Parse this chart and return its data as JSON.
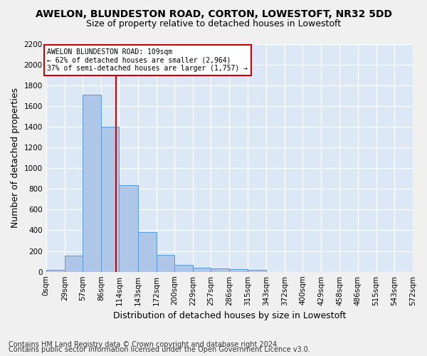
{
  "title1": "AWELON, BLUNDESTON ROAD, CORTON, LOWESTOFT, NR32 5DD",
  "title2": "Size of property relative to detached houses in Lowestoft",
  "xlabel": "Distribution of detached houses by size in Lowestoft",
  "ylabel": "Number of detached properties",
  "footnote1": "Contains HM Land Registry data © Crown copyright and database right 2024.",
  "footnote2": "Contains public sector information licensed under the Open Government Licence v3.0.",
  "bar_values": [
    20,
    155,
    1710,
    1400,
    835,
    385,
    165,
    65,
    38,
    30,
    28,
    15,
    0,
    0,
    0,
    0,
    0,
    0,
    0,
    0
  ],
  "bin_edges": [
    0,
    29,
    57,
    86,
    114,
    143,
    172,
    200,
    229,
    257,
    286,
    315,
    343,
    372,
    400,
    429,
    458,
    486,
    515,
    543,
    572
  ],
  "tick_labels": [
    "0sqm",
    "29sqm",
    "57sqm",
    "86sqm",
    "114sqm",
    "143sqm",
    "172sqm",
    "200sqm",
    "229sqm",
    "257sqm",
    "286sqm",
    "315sqm",
    "343sqm",
    "372sqm",
    "400sqm",
    "429sqm",
    "458sqm",
    "486sqm",
    "515sqm",
    "543sqm",
    "572sqm"
  ],
  "bar_color": "#aec6e8",
  "bar_edge_color": "#5b9bd5",
  "ylim": [
    0,
    2200
  ],
  "yticks": [
    0,
    200,
    400,
    600,
    800,
    1000,
    1200,
    1400,
    1600,
    1800,
    2000,
    2200
  ],
  "property_line_x": 109,
  "red_line_color": "#cc0000",
  "annotation_title": "AWELON BLUNDESTON ROAD: 109sqm",
  "annotation_line1": "← 62% of detached houses are smaller (2,964)",
  "annotation_line2": "37% of semi-detached houses are larger (1,757) →",
  "annotation_box_color": "#ffffff",
  "annotation_box_edge": "#cc0000",
  "bg_color": "#dce8f5",
  "grid_color": "#ffffff",
  "title1_fontsize": 10,
  "title2_fontsize": 9,
  "xlabel_fontsize": 9,
  "ylabel_fontsize": 9,
  "tick_fontsize": 7.5,
  "footnote_fontsize": 7
}
